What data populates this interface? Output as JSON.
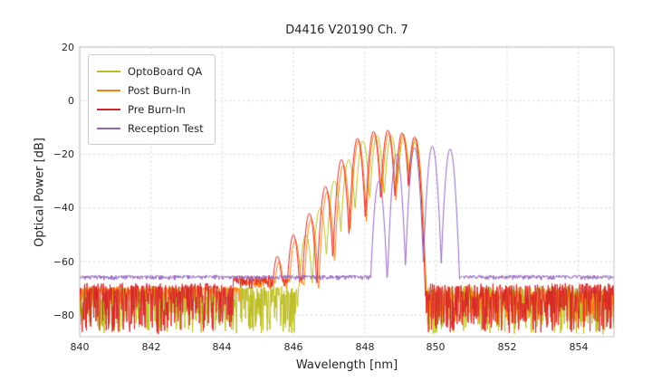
{
  "figure": {
    "title": "D4416 V20190 Ch. 7"
  },
  "colors": {
    "grid": "#cfcfcf",
    "spine": "#c0c0c0",
    "text": "#262626",
    "background": "#ffffff"
  },
  "chart_data": {
    "type": "line",
    "title": "D4416 V20190 Ch. 7",
    "xlabel": "Wavelength [nm]",
    "ylabel": "Optical Power [dB]",
    "xlim": [
      840,
      855
    ],
    "ylim": [
      -88,
      20
    ],
    "xticks": [
      840,
      842,
      844,
      846,
      848,
      850,
      852,
      854
    ],
    "xtick_labels": [
      "840",
      "842",
      "844",
      "846",
      "848",
      "850",
      "852",
      "854"
    ],
    "yticks": [
      20,
      0,
      -20,
      -40,
      -60,
      -80
    ],
    "ytick_labels": [
      "20",
      "0",
      "−20",
      "−40",
      "−60",
      "−80"
    ],
    "grid": true,
    "legend_position": "upper left",
    "series": [
      {
        "name": "OptoBoard QA",
        "color": "#bcbd22",
        "mode_width": 0.042,
        "modes": [
          [
            846.35,
            -50
          ],
          [
            846.75,
            -40
          ],
          [
            847.15,
            -30
          ],
          [
            847.55,
            -22
          ],
          [
            847.95,
            -15
          ],
          [
            848.35,
            -13
          ],
          [
            848.75,
            -13
          ],
          [
            849.1,
            -14
          ],
          [
            849.4,
            -15.5
          ]
        ],
        "floor": [
          [
            840,
            846.2,
            -70,
            17,
            1.5
          ],
          [
            846.2,
            849.55,
            -72,
            12,
            1.5
          ],
          [
            849.55,
            855,
            -70,
            17,
            1.5
          ]
        ]
      },
      {
        "name": "Post Burn-In",
        "color": "#ff7f0e",
        "mode_width": 0.04,
        "modes": [
          [
            845.6,
            -60
          ],
          [
            846.05,
            -52
          ],
          [
            846.5,
            -44
          ],
          [
            846.95,
            -34
          ],
          [
            847.4,
            -24
          ],
          [
            847.83,
            -15
          ],
          [
            848.28,
            -12.5
          ],
          [
            848.68,
            -12
          ],
          [
            849.08,
            -12.5
          ],
          [
            849.43,
            -14
          ]
        ],
        "floor": [
          [
            840,
            844.5,
            -70,
            6,
            1.2
          ],
          [
            844.5,
            846.3,
            -67,
            3.5,
            1.2
          ],
          [
            846.3,
            849.6,
            -70,
            10,
            1.5
          ],
          [
            849.6,
            855,
            -71,
            12,
            1.5
          ]
        ]
      },
      {
        "name": "Pre Burn-In",
        "color": "#d62728",
        "mode_width": 0.04,
        "modes": [
          [
            845.55,
            -58
          ],
          [
            846.0,
            -50
          ],
          [
            846.45,
            -42
          ],
          [
            846.9,
            -32
          ],
          [
            847.35,
            -22
          ],
          [
            847.8,
            -14
          ],
          [
            848.25,
            -11.5
          ],
          [
            848.65,
            -11
          ],
          [
            849.05,
            -12
          ],
          [
            849.4,
            -13.5
          ]
        ],
        "floor": [
          [
            840,
            844.3,
            -69,
            18,
            1.5
          ],
          [
            844.3,
            846.3,
            -66,
            4,
            1.2
          ],
          [
            846.3,
            849.6,
            -70,
            12,
            1.5
          ],
          [
            849.6,
            855,
            -69,
            18,
            1.5
          ]
        ]
      },
      {
        "name": "Reception Test",
        "color": "#9467bd",
        "mode_width": 0.038,
        "modes": [
          [
            848.4,
            -30
          ],
          [
            848.9,
            -20
          ],
          [
            849.4,
            -17.5
          ],
          [
            849.9,
            -17
          ],
          [
            850.4,
            -18
          ]
        ],
        "floor": [
          [
            840,
            855,
            -65.4,
            1.4,
            0.6
          ]
        ]
      }
    ]
  }
}
